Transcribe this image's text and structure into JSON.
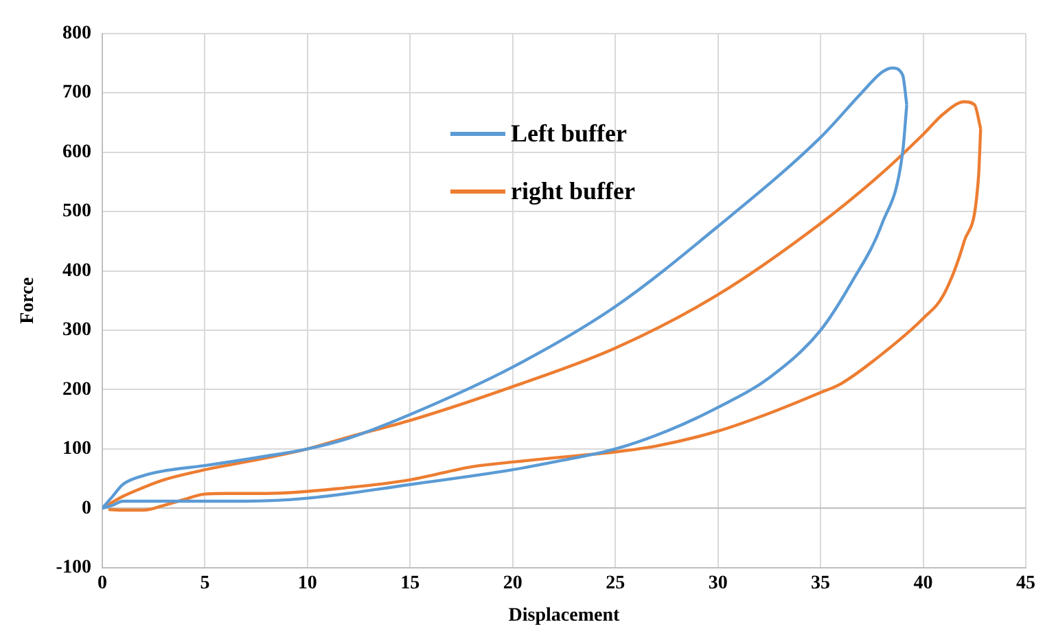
{
  "chart_data": {
    "type": "line",
    "xlabel": "Displacement",
    "ylabel": "Force",
    "xlim": [
      0,
      45
    ],
    "xticks": [
      0,
      5,
      10,
      15,
      20,
      25,
      30,
      35,
      40,
      45
    ],
    "ylim": [
      -100,
      800
    ],
    "yticks": [
      -100,
      0,
      100,
      200,
      300,
      400,
      500,
      600,
      700,
      800
    ],
    "grid": true,
    "legend": "top",
    "marker": "none",
    "line_style": "solid",
    "series": [
      {
        "name": "Left buffer",
        "color": "#5b9bd5",
        "x": [
          0,
          0.5,
          1,
          2,
          3,
          5,
          8,
          10,
          12,
          15,
          20,
          25,
          30,
          35,
          37,
          38,
          38.5,
          39,
          39.2
        ],
        "values": [
          0,
          20,
          40,
          55,
          63,
          72,
          88,
          100,
          118,
          158,
          238,
          340,
          475,
          625,
          700,
          735,
          742,
          730,
          680
        ]
      },
      {
        "color": "#5b9bd5",
        "x": [
          0,
          0.5,
          1,
          3,
          7,
          10,
          15,
          20,
          22,
          25,
          27.5,
          30,
          32.5,
          35,
          36.5,
          38,
          39,
          39.2
        ],
        "values": [
          0,
          5,
          12,
          12,
          12,
          17,
          40,
          65,
          78,
          100,
          130,
          170,
          220,
          300,
          380,
          480,
          600,
          680
        ]
      },
      {
        "name": "right buffer",
        "color": "#ed7d31",
        "x": [
          0,
          1,
          2,
          3,
          5,
          8,
          10,
          12,
          15,
          20,
          25,
          30,
          35,
          38,
          40,
          41,
          42,
          42.5,
          42.8
        ],
        "values": [
          0,
          20,
          35,
          48,
          65,
          85,
          100,
          120,
          148,
          205,
          270,
          360,
          480,
          565,
          630,
          665,
          685,
          680,
          640
        ]
      },
      {
        "color": "#ed7d31",
        "x": [
          0.3,
          1,
          2,
          3,
          4,
          5,
          6,
          8,
          12,
          15,
          18,
          20,
          22,
          25,
          27,
          30,
          32.5,
          35,
          36,
          38,
          40,
          41,
          42,
          42.7,
          42.8
        ],
        "values": [
          -2,
          -3,
          -3,
          5,
          15,
          24,
          25,
          25,
          35,
          48,
          70,
          78,
          85,
          95,
          105,
          130,
          160,
          195,
          210,
          260,
          320,
          360,
          450,
          560,
          640
        ]
      }
    ]
  }
}
